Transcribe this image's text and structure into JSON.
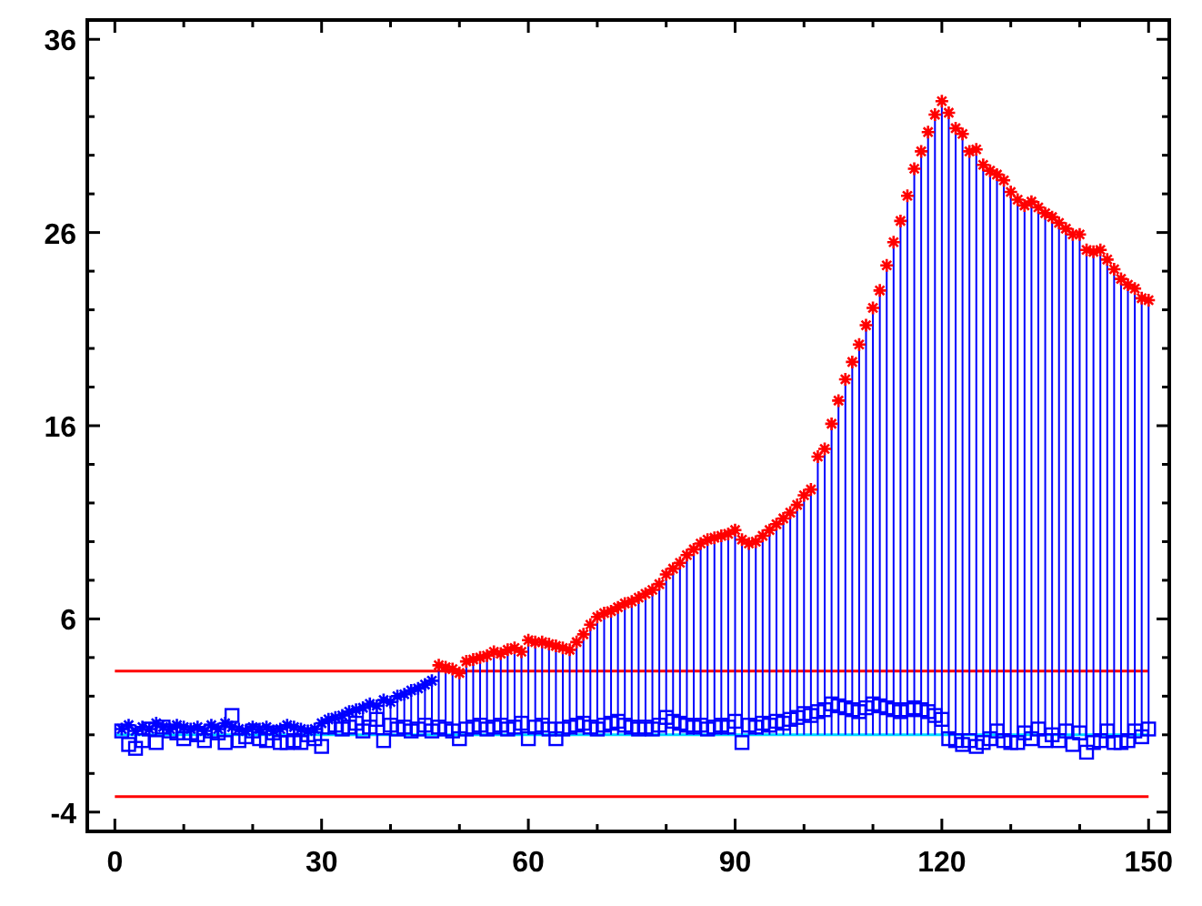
{
  "chart_data": {
    "type": "lollipop",
    "xlim": [
      -4,
      153
    ],
    "ylim": [
      -5,
      37
    ],
    "xticks": [
      0,
      {
        "value": 10,
        "label": null
      },
      {
        "value": 20,
        "label": null
      },
      30,
      {
        "value": 40,
        "label": null
      },
      {
        "value": 50,
        "label": null
      },
      60,
      {
        "value": 70,
        "label": null
      },
      {
        "value": 80,
        "label": null
      },
      90,
      {
        "value": 100,
        "label": null
      },
      {
        "value": 110,
        "label": null
      },
      120,
      {
        "value": 130,
        "label": null
      },
      {
        "value": 140,
        "label": null
      },
      150
    ],
    "yticks": [
      -4,
      {
        "value": -2,
        "label": null
      },
      {
        "value": 0,
        "label": null
      },
      {
        "value": 2,
        "label": null
      },
      {
        "value": 4,
        "label": null
      },
      6,
      {
        "value": 8,
        "label": null
      },
      {
        "value": 10,
        "label": null
      },
      {
        "value": 12,
        "label": null
      },
      {
        "value": 14,
        "label": null
      },
      16,
      {
        "value": 18,
        "label": null
      },
      {
        "value": 20,
        "label": null
      },
      {
        "value": 22,
        "label": null
      },
      {
        "value": 24,
        "label": null
      },
      26,
      {
        "value": 28,
        "label": null
      },
      {
        "value": 30,
        "label": null
      },
      {
        "value": 32,
        "label": null
      },
      {
        "value": 34,
        "label": null
      },
      36
    ],
    "grid": false,
    "series": [
      {
        "marker": "cross",
        "color": "#0000ff",
        "x": [
          1,
          2,
          3,
          4,
          5,
          6,
          7,
          8,
          9,
          10,
          11,
          12,
          13,
          14,
          15,
          16,
          17,
          18,
          19,
          20,
          21,
          22,
          23,
          24,
          25,
          26,
          27,
          28,
          29,
          30,
          31,
          32,
          33,
          34,
          35,
          36,
          37,
          38,
          39,
          40,
          41,
          42,
          43,
          44,
          45,
          46,
          47,
          48,
          49,
          50,
          51,
          52,
          53,
          54,
          55,
          56,
          57,
          58,
          59,
          60,
          61,
          62,
          63,
          64,
          65,
          66,
          67,
          68,
          69,
          70,
          71,
          72,
          73,
          74,
          75,
          76,
          77,
          78,
          79,
          80,
          81,
          82,
          83,
          84,
          85,
          86,
          87,
          88,
          89,
          90,
          91,
          92,
          93,
          94,
          95,
          96,
          97,
          98,
          99,
          100,
          101,
          102,
          103,
          104,
          105,
          106,
          107,
          108,
          109,
          110,
          111,
          112,
          113,
          114,
          115,
          116,
          117,
          118,
          119,
          120,
          121,
          122,
          123,
          124,
          125,
          126,
          127,
          128,
          129,
          130,
          131,
          132,
          133,
          134,
          135,
          136,
          137,
          138,
          139,
          140,
          141,
          142,
          143,
          144,
          145,
          146,
          147,
          148,
          149,
          150
        ],
        "values": [
          0.3,
          0.5,
          0.2,
          0.4,
          0.3,
          0.6,
          0.4,
          0.3,
          0.5,
          0.4,
          0.3,
          0.4,
          0.2,
          0.5,
          0.3,
          0.6,
          0.4,
          0.3,
          0.2,
          0.4,
          0.3,
          0.4,
          0.2,
          0.3,
          0.5,
          0.4,
          0.3,
          0.2,
          0.3,
          0.6,
          0.8,
          0.9,
          1.0,
          1.2,
          1.3,
          1.4,
          1.6,
          1.5,
          1.8,
          1.7,
          2.0,
          2.1,
          2.3,
          2.4,
          2.6,
          2.8,
          3.6,
          3.5,
          3.4,
          3.2,
          3.8,
          3.9,
          4.0,
          4.1,
          4.3,
          4.2,
          4.4,
          4.5,
          4.3,
          4.9,
          4.8,
          4.8,
          4.7,
          4.6,
          4.5,
          4.4,
          4.8,
          5.2,
          5.7,
          6.1,
          6.3,
          6.4,
          6.6,
          6.8,
          6.9,
          7.1,
          7.3,
          7.5,
          7.8,
          8.3,
          8.6,
          8.9,
          9.3,
          9.6,
          9.9,
          10.1,
          10.2,
          10.3,
          10.4,
          10.6,
          10.1,
          9.9,
          10.0,
          10.3,
          10.6,
          10.9,
          11.2,
          11.5,
          11.9,
          12.4,
          12.7,
          14.4,
          14.8,
          16.1,
          17.3,
          18.4,
          19.3,
          20.2,
          21.2,
          22.1,
          23.0,
          24.3,
          25.5,
          26.6,
          27.9,
          29.3,
          30.2,
          31.2,
          32.1,
          32.8,
          32.2,
          31.4,
          31.1,
          30.2,
          30.3,
          29.5,
          29.2,
          29.0,
          28.7,
          28.1,
          27.7,
          27.4,
          27.6,
          27.3,
          27.0,
          26.8,
          26.5,
          26.2,
          25.9,
          25.9,
          25.1,
          25.0,
          25.1,
          24.6,
          24.1,
          23.6,
          23.3,
          23.1,
          22.6,
          22.5
        ],
        "colors": [
          "#0000ff",
          "#0000ff",
          "#0000ff",
          "#0000ff",
          "#0000ff",
          "#0000ff",
          "#0000ff",
          "#0000ff",
          "#0000ff",
          "#0000ff",
          "#0000ff",
          "#0000ff",
          "#0000ff",
          "#0000ff",
          "#0000ff",
          "#0000ff",
          "#0000ff",
          "#0000ff",
          "#0000ff",
          "#0000ff",
          "#0000ff",
          "#0000ff",
          "#0000ff",
          "#0000ff",
          "#0000ff",
          "#0000ff",
          "#0000ff",
          "#0000ff",
          "#0000ff",
          "#0000ff",
          "#0000ff",
          "#0000ff",
          "#0000ff",
          "#0000ff",
          "#0000ff",
          "#0000ff",
          "#0000ff",
          "#0000ff",
          "#0000ff",
          "#0000ff",
          "#0000ff",
          "#0000ff",
          "#0000ff",
          "#0000ff",
          "#0000ff",
          "#0000ff",
          "#ff0000",
          "#ff0000",
          "#ff0000",
          "#ff0000",
          "#ff0000",
          "#ff0000",
          "#ff0000",
          "#ff0000",
          "#ff0000",
          "#ff0000",
          "#ff0000",
          "#ff0000",
          "#ff0000",
          "#ff0000",
          "#ff0000",
          "#ff0000",
          "#ff0000",
          "#ff0000",
          "#ff0000",
          "#ff0000",
          "#ff0000",
          "#ff0000",
          "#ff0000",
          "#ff0000",
          "#ff0000",
          "#ff0000",
          "#ff0000",
          "#ff0000",
          "#ff0000",
          "#ff0000",
          "#ff0000",
          "#ff0000",
          "#ff0000",
          "#ff0000",
          "#ff0000",
          "#ff0000",
          "#ff0000",
          "#ff0000",
          "#ff0000",
          "#ff0000",
          "#ff0000",
          "#ff0000",
          "#ff0000",
          "#ff0000",
          "#ff0000",
          "#ff0000",
          "#ff0000",
          "#ff0000",
          "#ff0000",
          "#ff0000",
          "#ff0000",
          "#ff0000",
          "#ff0000",
          "#ff0000",
          "#ff0000",
          "#ff0000",
          "#ff0000",
          "#ff0000",
          "#ff0000",
          "#ff0000",
          "#ff0000",
          "#ff0000",
          "#ff0000",
          "#ff0000",
          "#ff0000",
          "#ff0000",
          "#ff0000",
          "#ff0000",
          "#ff0000",
          "#ff0000",
          "#ff0000",
          "#ff0000",
          "#ff0000",
          "#ff0000",
          "#ff0000",
          "#ff0000",
          "#ff0000",
          "#ff0000",
          "#ff0000",
          "#ff0000",
          "#ff0000",
          "#ff0000",
          "#ff0000",
          "#ff0000",
          "#ff0000",
          "#ff0000",
          "#ff0000",
          "#ff0000",
          "#ff0000",
          "#ff0000",
          "#ff0000",
          "#ff0000",
          "#ff0000",
          "#ff0000",
          "#ff0000",
          "#ff0000",
          "#ff0000",
          "#ff0000",
          "#ff0000",
          "#ff0000",
          "#ff0000",
          "#ff0000",
          "#ff0000",
          "#ff0000"
        ]
      },
      {
        "type": "scatter",
        "marker": "square",
        "color": "#0000ff",
        "x": [
          1,
          2,
          3,
          4,
          5,
          6,
          7,
          8,
          9,
          10,
          11,
          12,
          13,
          14,
          15,
          16,
          17,
          18,
          19,
          20,
          21,
          22,
          23,
          24,
          25,
          26,
          27,
          28,
          29,
          30,
          31,
          32,
          33,
          34,
          35,
          36,
          37,
          38,
          39,
          40,
          41,
          42,
          43,
          44,
          45,
          46,
          47,
          48,
          49,
          50,
          51,
          52,
          53,
          54,
          55,
          56,
          57,
          58,
          59,
          60,
          61,
          62,
          63,
          64,
          65,
          66,
          67,
          68,
          69,
          70,
          71,
          72,
          73,
          74,
          75,
          76,
          77,
          78,
          79,
          80,
          81,
          82,
          83,
          84,
          85,
          86,
          87,
          88,
          89,
          90,
          91,
          92,
          93,
          94,
          95,
          96,
          97,
          98,
          99,
          100,
          101,
          102,
          103,
          104,
          105,
          106,
          107,
          108,
          109,
          110,
          111,
          112,
          113,
          114,
          115,
          116,
          117,
          118,
          119,
          120,
          121,
          122,
          123,
          124,
          125,
          126,
          127,
          128,
          129,
          130,
          131,
          132,
          133,
          134,
          135,
          136,
          137,
          138,
          139,
          140,
          141,
          142,
          143,
          144,
          145,
          146,
          147,
          148,
          149,
          150
        ],
        "values": [
          0.2,
          -0.5,
          -0.7,
          -0.3,
          0.3,
          -0.4,
          0.4,
          0.2,
          0.1,
          -0.2,
          0.1,
          0.0,
          -0.3,
          0.2,
          0.1,
          -0.4,
          1.0,
          -0.3,
          -0.1,
          0.2,
          -0.2,
          -0.3,
          0.1,
          -0.4,
          -0.4,
          -0.3,
          -0.4,
          0.0,
          -0.2,
          -0.6,
          0.4,
          0.5,
          0.3,
          0.4,
          0.6,
          0.2,
          0.4,
          0.8,
          -0.3,
          0.5,
          0.3,
          0.4,
          0.2,
          0.3,
          0.5,
          0.2,
          0.4,
          0.3,
          0.2,
          -0.2,
          0.3,
          0.4,
          0.5,
          0.3,
          0.4,
          0.5,
          0.3,
          0.4,
          0.6,
          -0.2,
          0.4,
          0.5,
          0.3,
          -0.2,
          0.3,
          0.4,
          0.5,
          0.6,
          0.4,
          0.3,
          0.5,
          0.6,
          0.7,
          0.5,
          0.4,
          0.3,
          0.4,
          0.3,
          0.5,
          0.9,
          0.7,
          0.6,
          0.5,
          0.4,
          0.5,
          0.3,
          0.4,
          0.5,
          0.4,
          0.7,
          -0.4,
          0.5,
          0.4,
          0.6,
          0.5,
          0.7,
          0.6,
          0.8,
          0.9,
          1.1,
          1.0,
          1.2,
          1.3,
          1.6,
          1.5,
          1.4,
          1.3,
          1.2,
          1.4,
          1.6,
          1.5,
          1.4,
          1.3,
          1.2,
          1.3,
          1.4,
          1.3,
          1.2,
          1.0,
          0.8,
          -0.2,
          -0.3,
          -0.5,
          -0.3,
          -0.6,
          -0.4,
          -0.2,
          0.2,
          -0.3,
          -0.4,
          -0.4,
          0.1,
          -0.2,
          0.3,
          -0.3,
          0.0,
          -0.3,
          0.2,
          -0.5,
          0.1,
          -0.9,
          -0.4,
          -0.3,
          0.2,
          -0.4,
          -0.4,
          -0.3,
          0.2,
          -0.1,
          0.3
        ]
      }
    ],
    "ref_lines": [
      {
        "axis": "y",
        "value": 3.3,
        "color": "#ff0000"
      },
      {
        "axis": "y",
        "value": -3.2,
        "color": "#ff0000"
      },
      {
        "axis": "y",
        "value": 0,
        "color": "#00d8ff"
      }
    ]
  }
}
